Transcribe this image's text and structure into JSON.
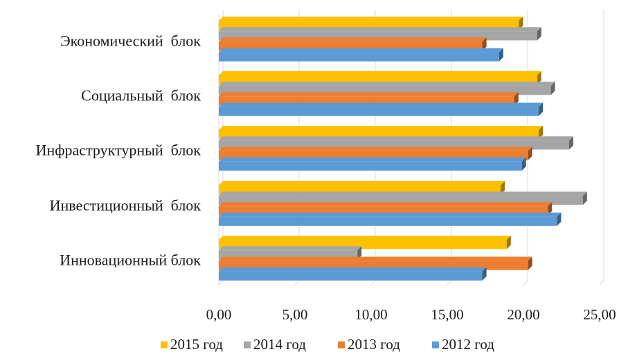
{
  "chart_data": {
    "type": "bar",
    "orientation": "horizontal",
    "style": "3d",
    "categories": [
      "Экономический  блок",
      "Социальный  блок",
      "Инфраструктурный  блок",
      "Инвестиционный  блок",
      "Инновационный блок"
    ],
    "series": [
      {
        "name": "2015 год",
        "color": "#FFC000",
        "values": [
          19.7,
          20.9,
          21.0,
          18.5,
          18.9
        ]
      },
      {
        "name": "2014 год",
        "color": "#A5A5A5",
        "values": [
          20.9,
          21.8,
          23.0,
          23.9,
          9.1
        ]
      },
      {
        "name": "2013 год",
        "color": "#ED7D31",
        "values": [
          17.3,
          19.4,
          20.3,
          21.6,
          20.3
        ]
      },
      {
        "name": "2012 год",
        "color": "#5B9BD5",
        "values": [
          18.4,
          21.0,
          19.9,
          22.2,
          17.3
        ]
      }
    ],
    "x_ticks": [
      "0,00",
      "5,00",
      "10,00",
      "15,00",
      "20,00",
      "25,00"
    ],
    "xlim": [
      0,
      25
    ],
    "grid": true,
    "legend": {
      "position": "bottom",
      "entries": [
        "2015 год",
        "2014 год",
        "2013 год",
        "2012 год"
      ]
    }
  }
}
